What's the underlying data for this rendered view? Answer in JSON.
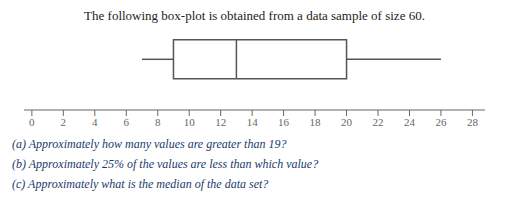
{
  "chart_data": {
    "type": "box",
    "title": "The following box-plot is obtained from a data sample of size 60.",
    "annotations": [
      "(a)  Approximately how many values are greater than 19?",
      "(b)  Approximately 25% of the values are less than which value?",
      "(c)  Approximately what is the median of the data set?"
    ],
    "whisker_low": 7,
    "q1": 9,
    "median": 13,
    "q3": 20,
    "whisker_high": 26,
    "color": "#555555",
    "xlim": [
      -0.5,
      28.8
    ],
    "xticks": [
      0,
      2,
      4,
      6,
      8,
      10,
      12,
      14,
      16,
      18,
      20,
      22,
      24,
      26,
      28
    ],
    "tick_labels": "x"
  }
}
